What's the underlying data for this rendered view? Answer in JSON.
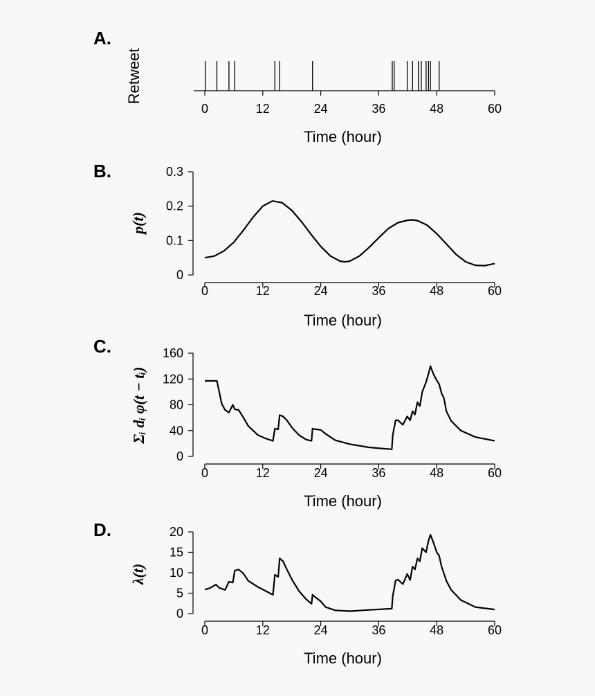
{
  "chart_data": [
    {
      "id": "A",
      "type": "raster",
      "panel_label": "A.",
      "ylabel": "Retweet",
      "xlabel": "Time (hour)",
      "xlim": [
        0,
        60
      ],
      "xticks": [
        0,
        12,
        24,
        36,
        48,
        60
      ],
      "events": [
        0.1,
        2.5,
        5.0,
        6.2,
        14.5,
        15.5,
        22.3,
        38.8,
        39.2,
        41.9,
        43.0,
        44.2,
        44.8,
        45.8,
        46.3,
        46.7,
        48.5
      ]
    },
    {
      "id": "B",
      "type": "line",
      "panel_label": "B.",
      "ylabel": "p(t)",
      "xlabel": "Time (hour)",
      "xlim": [
        0,
        60
      ],
      "ylim": [
        0,
        0.3
      ],
      "xticks": [
        0,
        12,
        24,
        36,
        48,
        60
      ],
      "yticks": [
        "0",
        "0.1",
        "0.2",
        "0.3"
      ],
      "x": [
        0,
        2,
        4,
        6,
        8,
        10,
        12,
        14,
        16,
        18,
        20,
        22,
        24,
        26,
        28,
        29,
        30,
        32,
        34,
        36,
        38,
        40,
        42,
        43,
        44,
        46,
        48,
        50,
        52,
        54,
        56,
        58,
        60
      ],
      "y": [
        0.05,
        0.055,
        0.07,
        0.095,
        0.13,
        0.168,
        0.2,
        0.215,
        0.21,
        0.188,
        0.155,
        0.118,
        0.083,
        0.055,
        0.04,
        0.038,
        0.04,
        0.055,
        0.08,
        0.108,
        0.135,
        0.152,
        0.159,
        0.16,
        0.158,
        0.145,
        0.12,
        0.09,
        0.06,
        0.038,
        0.028,
        0.027,
        0.033
      ]
    },
    {
      "id": "C",
      "type": "line",
      "panel_label": "C.",
      "ylabel": "Σᵢ dᵢ φ(t − tᵢ)",
      "xlabel": "Time (hour)",
      "xlim": [
        0,
        60
      ],
      "ylim": [
        0,
        160
      ],
      "xticks": [
        0,
        12,
        24,
        36,
        48,
        60
      ],
      "yticks": [
        "0",
        "40",
        "80",
        "120",
        "160"
      ],
      "x": [
        0,
        2.5,
        3,
        3.5,
        4.2,
        5,
        5.8,
        6.2,
        7,
        8,
        9,
        11,
        12.5,
        14.1,
        14.5,
        15.2,
        15.5,
        16.2,
        17,
        18,
        19.5,
        21,
        22.1,
        22.3,
        23,
        24,
        25,
        27,
        30,
        34,
        38.7,
        38.9,
        39.5,
        40,
        41,
        41.9,
        42.5,
        43,
        43.5,
        44,
        44.5,
        45,
        45.8,
        46.3,
        46.7,
        47.3,
        48,
        48.5,
        49,
        49.5,
        50,
        51,
        53,
        56,
        60
      ],
      "y": [
        117,
        117,
        100,
        82,
        72,
        68,
        80,
        73,
        72,
        60,
        47,
        33,
        28,
        24,
        43,
        42,
        64,
        62,
        56,
        45,
        33,
        26,
        24,
        43,
        42,
        41,
        35,
        25,
        19,
        14,
        11,
        33,
        56,
        56,
        49,
        62,
        56,
        70,
        65,
        84,
        78,
        100,
        115,
        128,
        140,
        128,
        118,
        112,
        98,
        90,
        70,
        55,
        40,
        30,
        24
      ]
    },
    {
      "id": "D",
      "type": "line",
      "panel_label": "D.",
      "ylabel": "λ(t)",
      "xlabel": "Time (hour)",
      "xlim": [
        0,
        60
      ],
      "ylim": [
        0,
        20
      ],
      "xticks": [
        0,
        12,
        24,
        36,
        48,
        60
      ],
      "yticks": [
        "0",
        "5",
        "10",
        "15",
        "20"
      ],
      "x": [
        0,
        1,
        2.3,
        3,
        4.2,
        5,
        5.8,
        6.2,
        7,
        8,
        9,
        11,
        12.5,
        14.1,
        14.5,
        15.2,
        15.5,
        16.2,
        17,
        18,
        19.5,
        21,
        22.1,
        22.3,
        23,
        24,
        25,
        27,
        30,
        34,
        38.7,
        38.9,
        39.5,
        40,
        41,
        41.9,
        42.5,
        43,
        43.5,
        44,
        44.5,
        45,
        45.8,
        46.3,
        46.7,
        47.3,
        48,
        48.5,
        49,
        49.5,
        50,
        51,
        53,
        56,
        60
      ],
      "y": [
        5.9,
        6.2,
        7.1,
        6.3,
        5.8,
        7.8,
        7.6,
        10.5,
        10.8,
        9.8,
        8.0,
        6.5,
        5.6,
        4.6,
        9.5,
        9.0,
        13.5,
        12.8,
        10.8,
        8.4,
        5.5,
        3.5,
        2.4,
        4.6,
        3.9,
        3.0,
        1.6,
        0.8,
        0.6,
        0.9,
        1.2,
        4.3,
        8.1,
        8.3,
        7.2,
        9.7,
        8.2,
        11.5,
        10.8,
        13.5,
        12.8,
        16.0,
        15.0,
        17.8,
        19.3,
        17.5,
        15.0,
        14.2,
        11.5,
        9.8,
        8.0,
        5.8,
        3.3,
        1.6,
        1.0
      ]
    }
  ]
}
